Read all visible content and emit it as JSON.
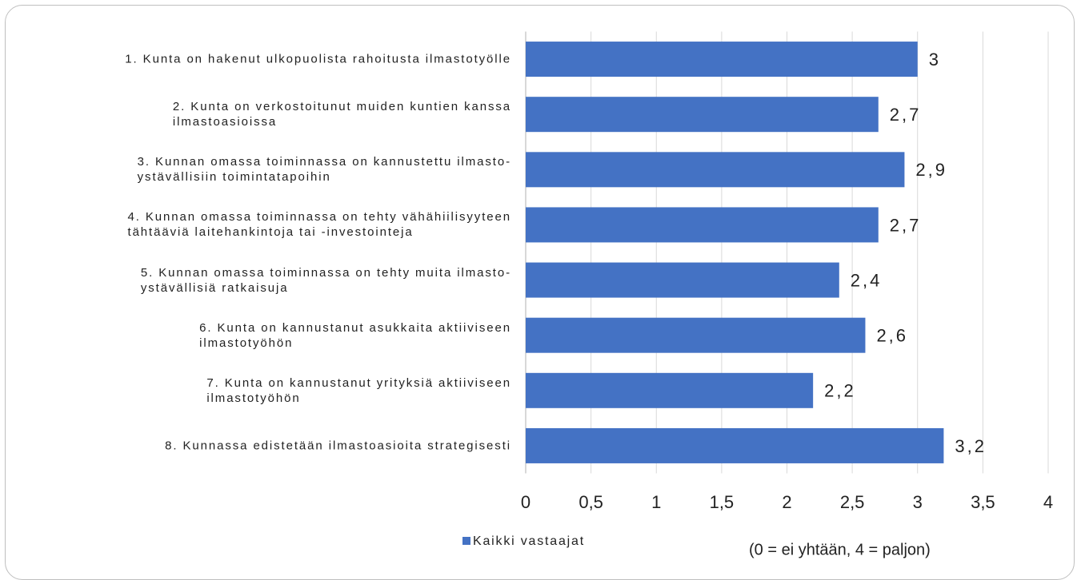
{
  "chart_data": {
    "type": "bar",
    "orientation": "horizontal",
    "categories": [
      "1. Kunta on hakenut ulkopuolista rahoitusta ilmastotyölle",
      "2. Kunta on verkostoitunut muiden kuntien kanssa\nilmastoasioissa",
      "3. Kunnan omassa toiminnassa on kannustettu ilmasto-\nystävällisiin toimintatapoihin",
      "4. Kunnan omassa toiminnassa on tehty vähähiilisyyteen\ntähtääviä laitehankintoja tai -investointeja",
      "5. Kunnan omassa toiminnassa on tehty muita ilmasto-\nystävällisiä ratkaisuja",
      "6. Kunta on kannustanut asukkaita aktiiviseen\nilmastotyöhön",
      "7. Kunta on kannustanut yrityksiä aktiiviseen\nilmastotyöhön",
      "8. Kunnassa edistetään ilmastoasioita strategisesti"
    ],
    "series": [
      {
        "name": "Kaikki vastaajat",
        "color": "#4472c4",
        "values": [
          3,
          2.7,
          2.9,
          2.7,
          2.4,
          2.6,
          2.2,
          3.2
        ],
        "value_labels": [
          "3",
          "2,7",
          "2,9",
          "2,7",
          "2,4",
          "2,6",
          "2,2",
          "3,2"
        ]
      }
    ],
    "xlim": [
      0,
      4
    ],
    "xticks": [
      0,
      {
        "value": 0.5,
        "label": "0,5"
      },
      1,
      {
        "value": 1.5,
        "label": "1,5"
      },
      2,
      {
        "value": 2.5,
        "label": "2,5"
      },
      3,
      {
        "value": 3.5,
        "label": "3,5"
      },
      4
    ],
    "grid": true,
    "legend": "bottom",
    "annotation": "(0 = ei yhtään, 4 = paljon)"
  }
}
